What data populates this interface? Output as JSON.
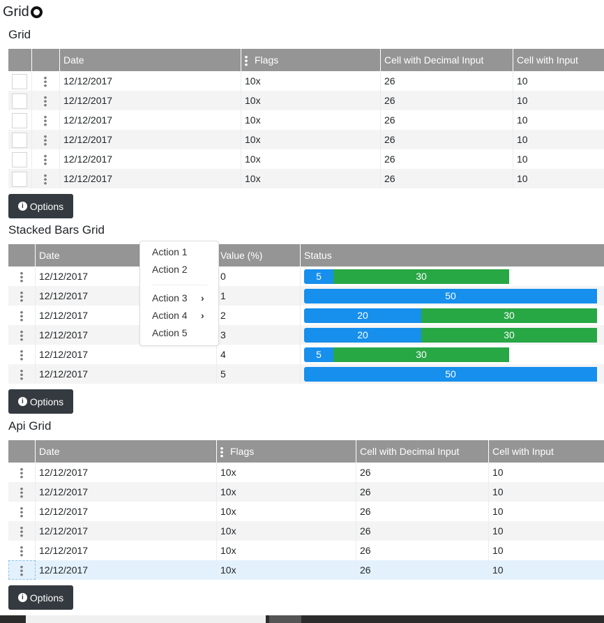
{
  "page": {
    "title": "Grid",
    "github_icon": "github-icon"
  },
  "options_label": "Options",
  "grid1": {
    "title": "Grid",
    "columns": [
      "",
      "",
      "Date",
      "Flags",
      "Cell with Decimal Input",
      "Cell with Input"
    ],
    "rows": [
      {
        "date": "12/12/2017",
        "flags": "10x",
        "decimal": "26",
        "input": "10"
      },
      {
        "date": "12/12/2017",
        "flags": "10x",
        "decimal": "26",
        "input": "10"
      },
      {
        "date": "12/12/2017",
        "flags": "10x",
        "decimal": "26",
        "input": "10"
      },
      {
        "date": "12/12/2017",
        "flags": "10x",
        "decimal": "26",
        "input": "10"
      },
      {
        "date": "12/12/2017",
        "flags": "10x",
        "decimal": "26",
        "input": "10"
      },
      {
        "date": "12/12/2017",
        "flags": "10x",
        "decimal": "26",
        "input": "10"
      }
    ]
  },
  "stacked": {
    "title": "Stacked Bars Grid",
    "columns": [
      "",
      "Date",
      "Value (%)",
      "Status"
    ],
    "colors": {
      "blue": "#168fed",
      "green": "#28a745"
    },
    "rows": [
      {
        "date": "12/12/2017",
        "value": "0",
        "segments": [
          {
            "v": 5,
            "color": "blue"
          },
          {
            "v": 30,
            "color": "green"
          }
        ]
      },
      {
        "date": "12/12/2017",
        "value": "1",
        "segments": [
          {
            "v": 50,
            "color": "blue"
          }
        ]
      },
      {
        "date": "12/12/2017",
        "value": "2",
        "segments": [
          {
            "v": 20,
            "color": "blue"
          },
          {
            "v": 30,
            "color": "green"
          }
        ]
      },
      {
        "date": "12/12/2017",
        "value": "3",
        "segments": [
          {
            "v": 20,
            "color": "blue"
          },
          {
            "v": 30,
            "color": "green"
          }
        ]
      },
      {
        "date": "12/12/2017",
        "value": "4",
        "segments": [
          {
            "v": 5,
            "color": "blue"
          },
          {
            "v": 30,
            "color": "green"
          }
        ]
      },
      {
        "date": "12/12/2017",
        "value": "5",
        "segments": [
          {
            "v": 50,
            "color": "blue"
          }
        ]
      }
    ]
  },
  "context_menu": {
    "items": [
      {
        "label": "Action 1",
        "submenu": false
      },
      {
        "label": "Action 2",
        "submenu": false
      },
      {
        "label": "Action 3",
        "submenu": true
      },
      {
        "label": "Action 4",
        "submenu": true
      },
      {
        "label": "Action 5",
        "submenu": false
      }
    ]
  },
  "api_grid": {
    "title": "Api Grid",
    "columns": [
      "",
      "Date",
      "Flags",
      "Cell with Decimal Input",
      "Cell with Input"
    ],
    "rows": [
      {
        "date": "12/12/2017",
        "flags": "10x",
        "decimal": "26",
        "input": "10"
      },
      {
        "date": "12/12/2017",
        "flags": "10x",
        "decimal": "26",
        "input": "10"
      },
      {
        "date": "12/12/2017",
        "flags": "10x",
        "decimal": "26",
        "input": "10"
      },
      {
        "date": "12/12/2017",
        "flags": "10x",
        "decimal": "26",
        "input": "10"
      },
      {
        "date": "12/12/2017",
        "flags": "10x",
        "decimal": "26",
        "input": "10"
      },
      {
        "date": "12/12/2017",
        "flags": "10x",
        "decimal": "26",
        "input": "10",
        "selected": true
      }
    ]
  }
}
